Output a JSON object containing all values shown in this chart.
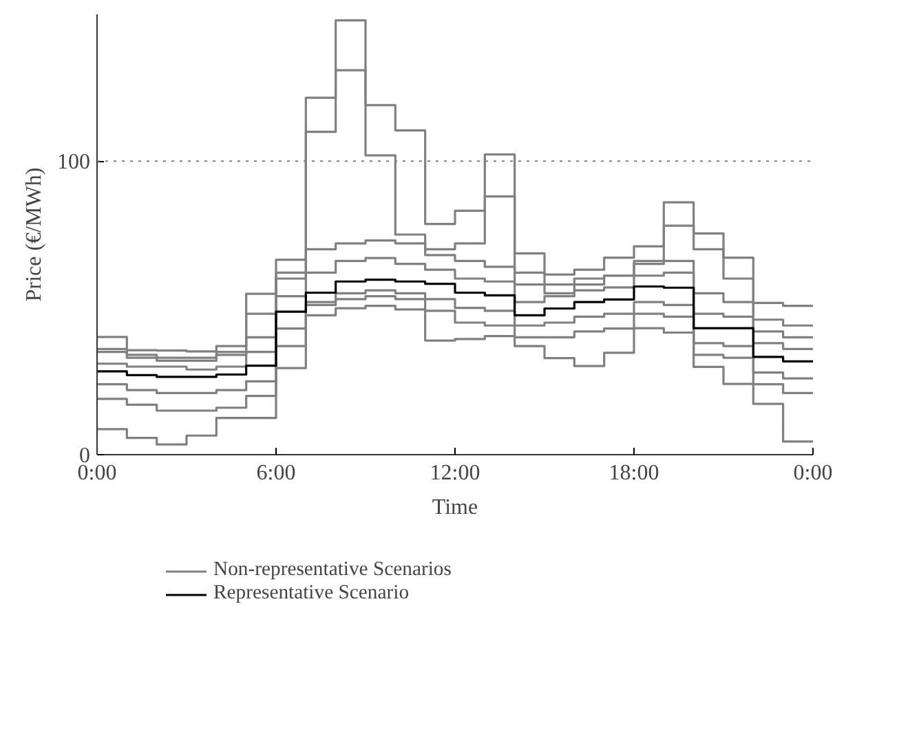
{
  "chart_data": {
    "type": "step",
    "xlabel": "Time",
    "ylabel": "Price (€/MWh)",
    "x": [
      0,
      1,
      2,
      3,
      4,
      5,
      6,
      7,
      8,
      9,
      10,
      11,
      12,
      13,
      14,
      15,
      16,
      17,
      18,
      19,
      20,
      21,
      22,
      23,
      24
    ],
    "xlim": [
      0,
      24
    ],
    "xticks": [
      {
        "value": 0,
        "label": "0:00"
      },
      {
        "value": 6,
        "label": "6:00"
      },
      {
        "value": 12,
        "label": "12:00"
      },
      {
        "value": 18,
        "label": "18:00"
      },
      {
        "value": 24,
        "label": "0:00"
      }
    ],
    "ylim": [
      0,
      150
    ],
    "yticks": [
      0,
      100
    ],
    "grid": false,
    "legend": "bottom",
    "ref_lines": [
      {
        "axis": "y",
        "value": 100,
        "color": "#808080",
        "line_style": "dotted"
      }
    ],
    "series": [
      {
        "name": "Non-representative Scenarios",
        "color": "#808080",
        "values": [
          40.1,
          35.6,
          35.5,
          35.2,
          37,
          54.8,
          66.4,
          121.6,
          148,
          119.1,
          110.5,
          78.6,
          83.1,
          102.3,
          68.6,
          61.4,
          63,
          67.1,
          71,
          86,
          75.4,
          67.1,
          51.7,
          50.7,
          50.7
        ]
      },
      {
        "color": "#808080",
        "values": [
          36,
          34,
          33,
          33,
          35,
          48,
          62,
          110,
          131,
          102,
          75,
          70,
          72,
          88,
          62,
          55,
          58,
          61,
          66,
          78,
          70,
          60,
          46,
          44,
          44
        ]
      },
      {
        "color": "#808080",
        "values": [
          35,
          33,
          32,
          32,
          34,
          40,
          60,
          70,
          72,
          73,
          72,
          68,
          66,
          64,
          58,
          58,
          60,
          61,
          65,
          66,
          55,
          52,
          42,
          40,
          40
        ]
      },
      {
        "color": "#808080",
        "values": [
          31,
          30,
          30,
          29,
          30,
          35,
          54,
          62,
          66,
          67,
          65,
          63,
          60,
          59,
          52,
          54,
          56,
          57,
          61,
          62,
          48,
          47,
          38,
          36,
          36
        ]
      },
      {
        "color": "#808080",
        "values": [
          24,
          22,
          21,
          21,
          22,
          25,
          43,
          52,
          55,
          56,
          55,
          53,
          50,
          49,
          44,
          45,
          47,
          48,
          52,
          51,
          38,
          37,
          28,
          26,
          26
        ]
      },
      {
        "color": "#808080",
        "values": [
          19,
          17,
          15,
          15,
          16,
          20,
          37,
          51,
          53,
          54,
          53,
          49,
          45,
          44,
          40,
          40,
          42,
          43,
          48,
          47,
          34,
          33,
          24,
          21,
          21
        ]
      },
      {
        "color": "#808080",
        "values": [
          8.7,
          5.7,
          3.5,
          6.5,
          12.5,
          12.5,
          29.5,
          47.5,
          49.9,
          50.7,
          49.5,
          38.9,
          39.4,
          40.4,
          37,
          32.9,
          30.2,
          34.7,
          43.1,
          41.6,
          29.9,
          24.1,
          17.3,
          4.5,
          4.5
        ]
      },
      {
        "name": "Representative Scenario",
        "color": "#000000",
        "values": [
          28.4,
          27.1,
          26.5,
          26.5,
          27.3,
          30.3,
          48.7,
          55.2,
          59,
          59.6,
          59,
          58.2,
          55.2,
          54.3,
          47.5,
          49.8,
          52,
          52.9,
          57.3,
          56.9,
          43.1,
          43.1,
          33.3,
          31.8,
          31.8
        ]
      }
    ]
  }
}
